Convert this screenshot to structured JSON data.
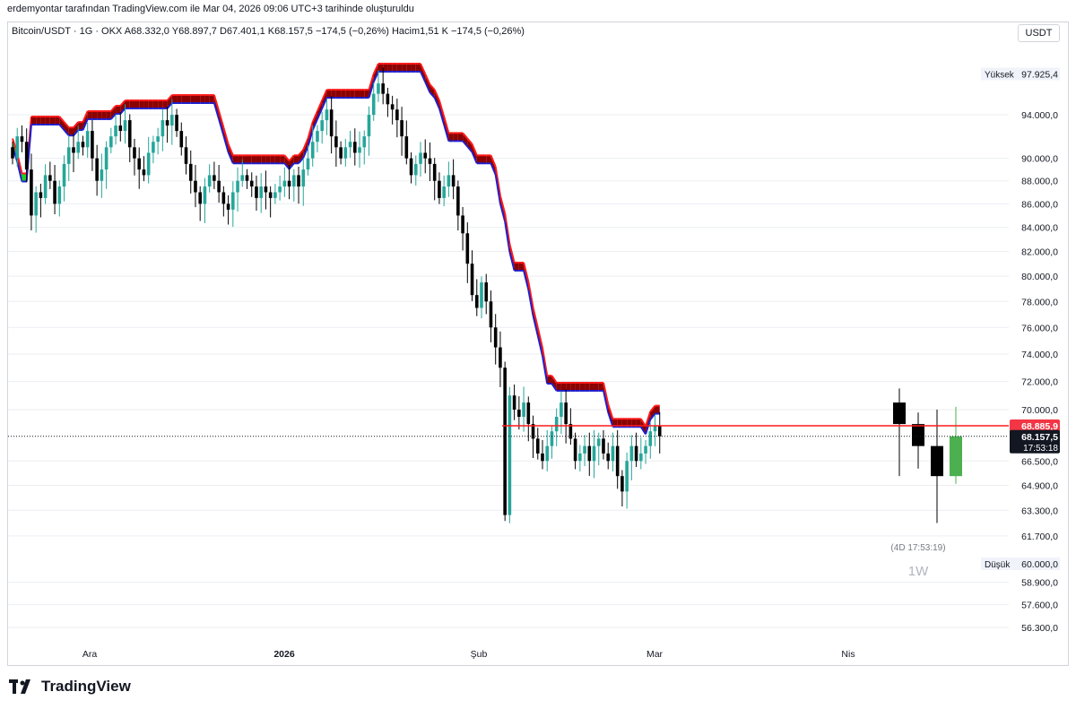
{
  "header": {
    "credit": "erdemyontar tarafından TradingView.com ile Mar 04, 2026 09:06 UTC+3 tarihinde oluşturuldu",
    "legend": "Bitcoin/USDT · 1G · OKX   A68.332,0  Y68.897,7  D67.401,1  K68.157,5  −174,5 (−0,26%)   Hacim1,51 K  −174,5 (−0,26%)",
    "currency": "USDT"
  },
  "colors": {
    "up": "#26a69a",
    "down": "#000000",
    "cloud_bear": "#8b0000",
    "cloud_bull": "#22cc22",
    "line_red": "#ff1a1a",
    "line_blue": "#1f1fcc",
    "weekly_up": "#4caf50",
    "grid": "#eceef2"
  },
  "chart_data": {
    "type": "candlestick",
    "x_ticks": [
      "Ara",
      "2026",
      "Şub",
      "Mar",
      "Nis"
    ],
    "y_ticks": [
      "94.000,0",
      "90.000,0",
      "88.000,0",
      "86.000,0",
      "84.000,0",
      "82.000,0",
      "80.000,0",
      "78.000,0",
      "76.000,0",
      "74.000,0",
      "72.000,0",
      "70.000,0",
      "66.500,0",
      "64.900,0",
      "63.300,0",
      "61.700,0",
      "58.900,0",
      "57.600,0",
      "56.300,0"
    ],
    "scale": "log",
    "ylim": [
      55700,
      101000
    ],
    "last_price": {
      "label": "68.157,5",
      "value": 68157.5,
      "countdown": "17:53:18"
    },
    "high": {
      "label": "Yüksek",
      "value_label": "97.925,4",
      "value": 97925.4
    },
    "low": {
      "label": "Düşük",
      "value_label": "60.000,0",
      "value": 60000
    },
    "resistance": {
      "label": "68.885,9",
      "value": 68885.9
    },
    "weekly_inset": {
      "timeframe": "1W",
      "countdown": "(4D 17:53:19)"
    },
    "daily_closes": [
      90000,
      92000,
      91500,
      89000,
      85000,
      87000,
      86500,
      88500,
      88000,
      86000,
      87500,
      89500,
      91000,
      90500,
      91500,
      91000,
      92500,
      90000,
      88000,
      89000,
      91000,
      92000,
      93000,
      92500,
      93500,
      91000,
      90000,
      89000,
      88500,
      90500,
      91500,
      92000,
      93500,
      93000,
      94000,
      92500,
      91000,
      89500,
      88000,
      87000,
      86000,
      87500,
      88500,
      88000,
      87000,
      86000,
      85500,
      87000,
      88000,
      88500,
      88000,
      87500,
      86500,
      87500,
      87000,
      86500,
      87000,
      87500,
      88000,
      87500,
      88500,
      87500,
      89000,
      90000,
      91500,
      92500,
      93500,
      94500,
      92000,
      91000,
      90000,
      91000,
      91500,
      90500,
      91000,
      92000,
      94000,
      96000,
      97000,
      96000,
      95000,
      94500,
      93500,
      92000,
      90000,
      88500,
      89500,
      90500,
      90000,
      89500,
      88000,
      86500,
      87500,
      88500,
      87500,
      85000,
      83500,
      81000,
      78500,
      77500,
      79500,
      78000,
      76000,
      74500,
      73000,
      63000,
      71000,
      70000,
      69500,
      70500,
      69000,
      68000,
      67000,
      66500,
      67500,
      68500,
      69500,
      70500,
      69000,
      68000,
      66500,
      67000,
      67500,
      66500,
      67500,
      68000,
      67000,
      66500,
      67500,
      65500,
      64500,
      66500,
      67500,
      66500,
      67000,
      67500,
      68500,
      68900,
      68157.5
    ],
    "weekly_candles": [
      {
        "o": 70500,
        "h": 71500,
        "l": 65500,
        "c": 69000
      },
      {
        "o": 69000,
        "h": 69800,
        "l": 66000,
        "c": 67500
      },
      {
        "o": 67500,
        "h": 70000,
        "l": 62500,
        "c": 65500
      },
      {
        "o": 65500,
        "h": 70200,
        "l": 65000,
        "c": 68157.5
      }
    ]
  }
}
